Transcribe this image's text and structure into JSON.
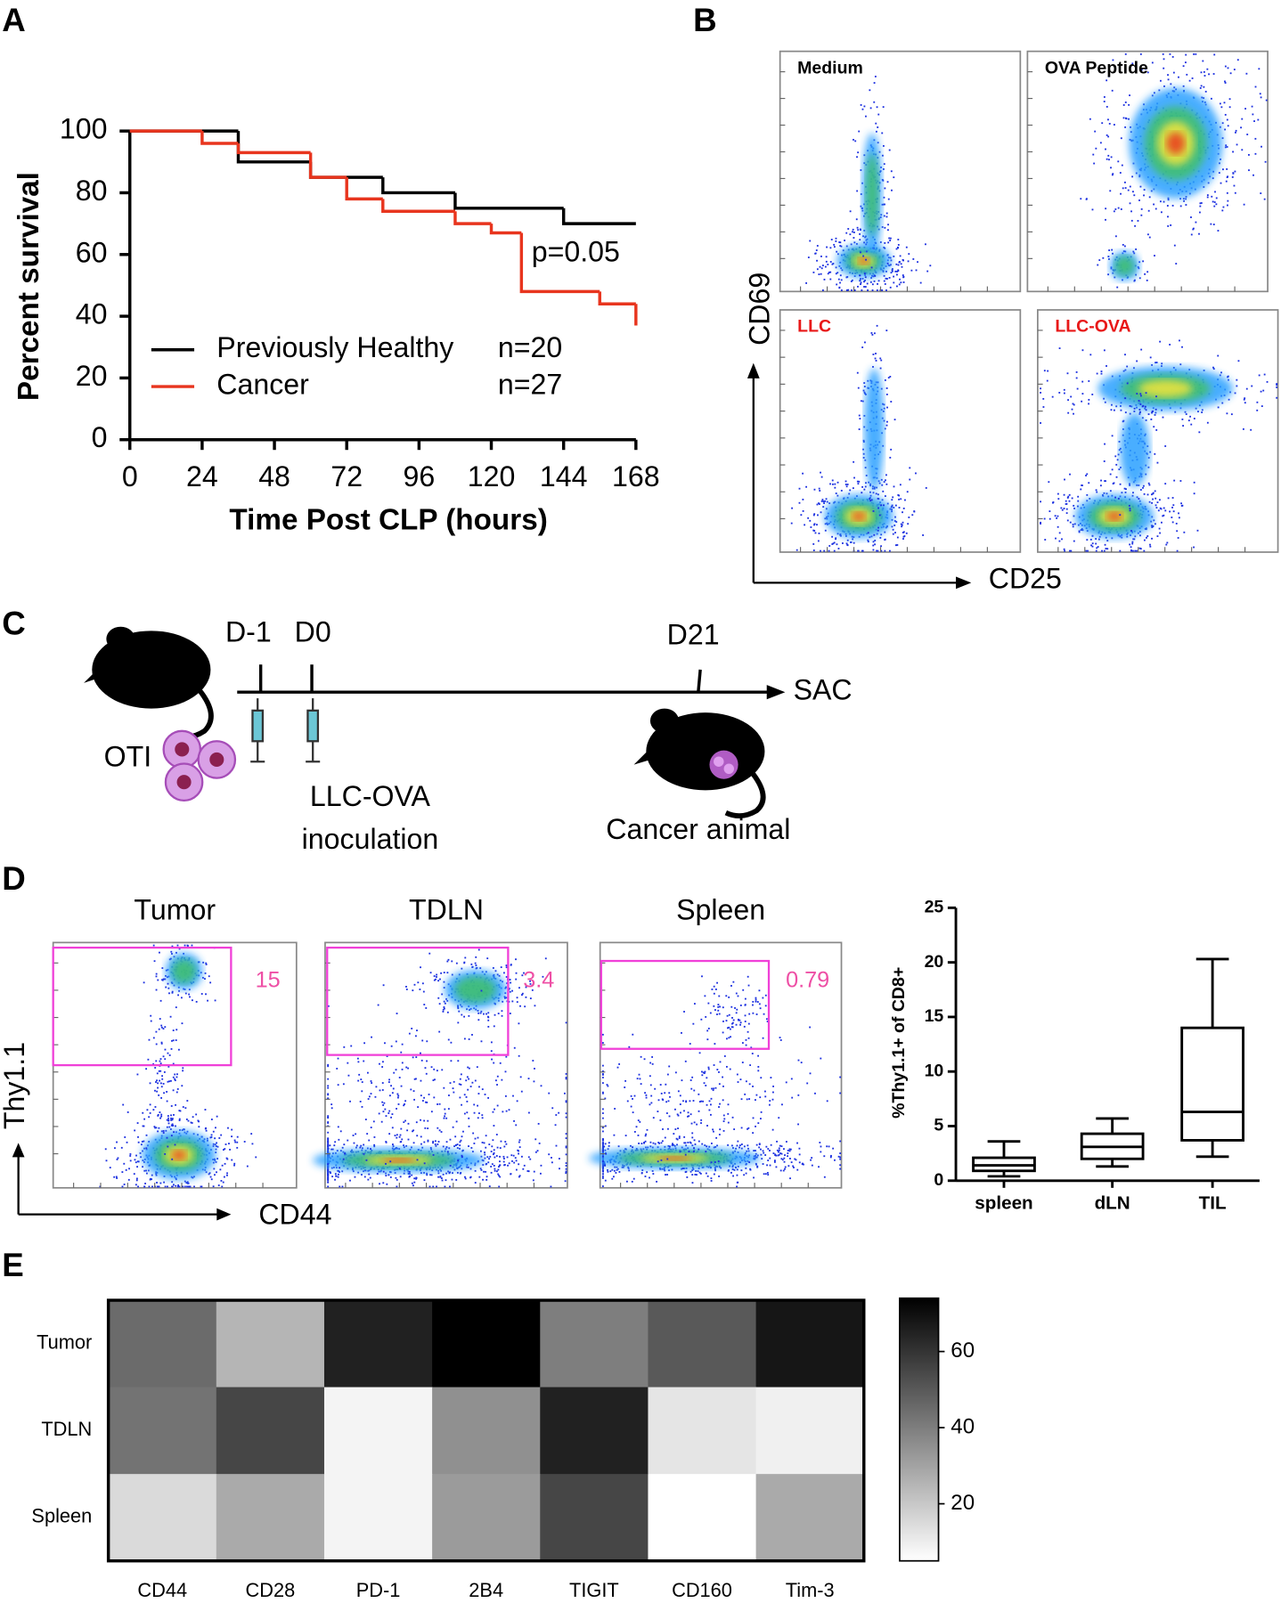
{
  "panel_labels": [
    "A",
    "B",
    "C",
    "D",
    "E"
  ],
  "chart_data": [
    {
      "type": "step",
      "xlabel": "Time Post CLP (hours)",
      "ylabel": "Percent survival",
      "xlim": [
        0,
        168
      ],
      "xticks": [
        0,
        24,
        48,
        72,
        96,
        120,
        144,
        168
      ],
      "ylim": [
        0,
        100
      ],
      "yticks": [
        0,
        20,
        40,
        60,
        80,
        100
      ],
      "annotation": "p=0.05",
      "series": [
        {
          "name": "Previously Healthy",
          "n_label": "n=20",
          "color": "#000000",
          "x": [
            0,
            36,
            60,
            84,
            108,
            144,
            168
          ],
          "values": [
            100,
            90,
            85,
            80,
            75,
            70,
            70
          ]
        },
        {
          "name": "Cancer",
          "n_label": "n=27",
          "color": "#e8351e",
          "x": [
            0,
            24,
            36,
            60,
            72,
            84,
            108,
            120,
            130,
            156,
            168
          ],
          "values": [
            100,
            96,
            93,
            85,
            78,
            74,
            70,
            67,
            48,
            44,
            37
          ]
        }
      ]
    },
    {
      "type": "box",
      "ylabel": "%Thy1.1+  of CD8+",
      "categories": [
        "spleen",
        "dLN",
        "TIL"
      ],
      "ylim": [
        0,
        25
      ],
      "yticks": [
        0,
        5,
        10,
        15,
        20,
        25
      ],
      "min": [
        0.4,
        1.3,
        2.2
      ],
      "q1": [
        0.9,
        2.0,
        3.7
      ],
      "median": [
        1.4,
        3.1,
        6.3
      ],
      "q3": [
        2.1,
        4.3,
        14.0
      ],
      "max": [
        3.6,
        5.7,
        20.3
      ]
    },
    {
      "type": "heatmap",
      "rows": [
        "Tumor",
        "TDLN",
        "Spleen"
      ],
      "categories": [
        "CD44",
        "CD28",
        "PD-1",
        "2B4",
        "TIGIT",
        "CD160",
        "Tim-3"
      ],
      "values": [
        [
          45,
          25,
          65,
          74,
          40,
          50,
          68
        ],
        [
          43,
          55,
          8,
          35,
          65,
          12,
          9
        ],
        [
          15,
          28,
          8,
          32,
          55,
          5,
          28
        ]
      ],
      "clim": [
        5,
        74
      ],
      "cticks": [
        20,
        40,
        60
      ]
    }
  ],
  "flow_b": {
    "plots": [
      "Medium",
      "OVA Peptide",
      "LLC",
      "LLC-OVA"
    ],
    "ylabel": "CD69",
    "xlabel": "CD25"
  },
  "diagram_c": {
    "days": [
      "D-1",
      "D0",
      "D21"
    ],
    "end": "SAC",
    "cells": "OTI",
    "inoculation": [
      "LLC-OVA",
      "inoculation"
    ],
    "animal": "Cancer animal"
  },
  "flow_d": {
    "plots": [
      "Tumor",
      "TDLN",
      "Spleen"
    ],
    "gates": [
      15,
      3.4,
      0.79
    ],
    "ylabel": "Thy1.1",
    "xlabel": "CD44"
  }
}
